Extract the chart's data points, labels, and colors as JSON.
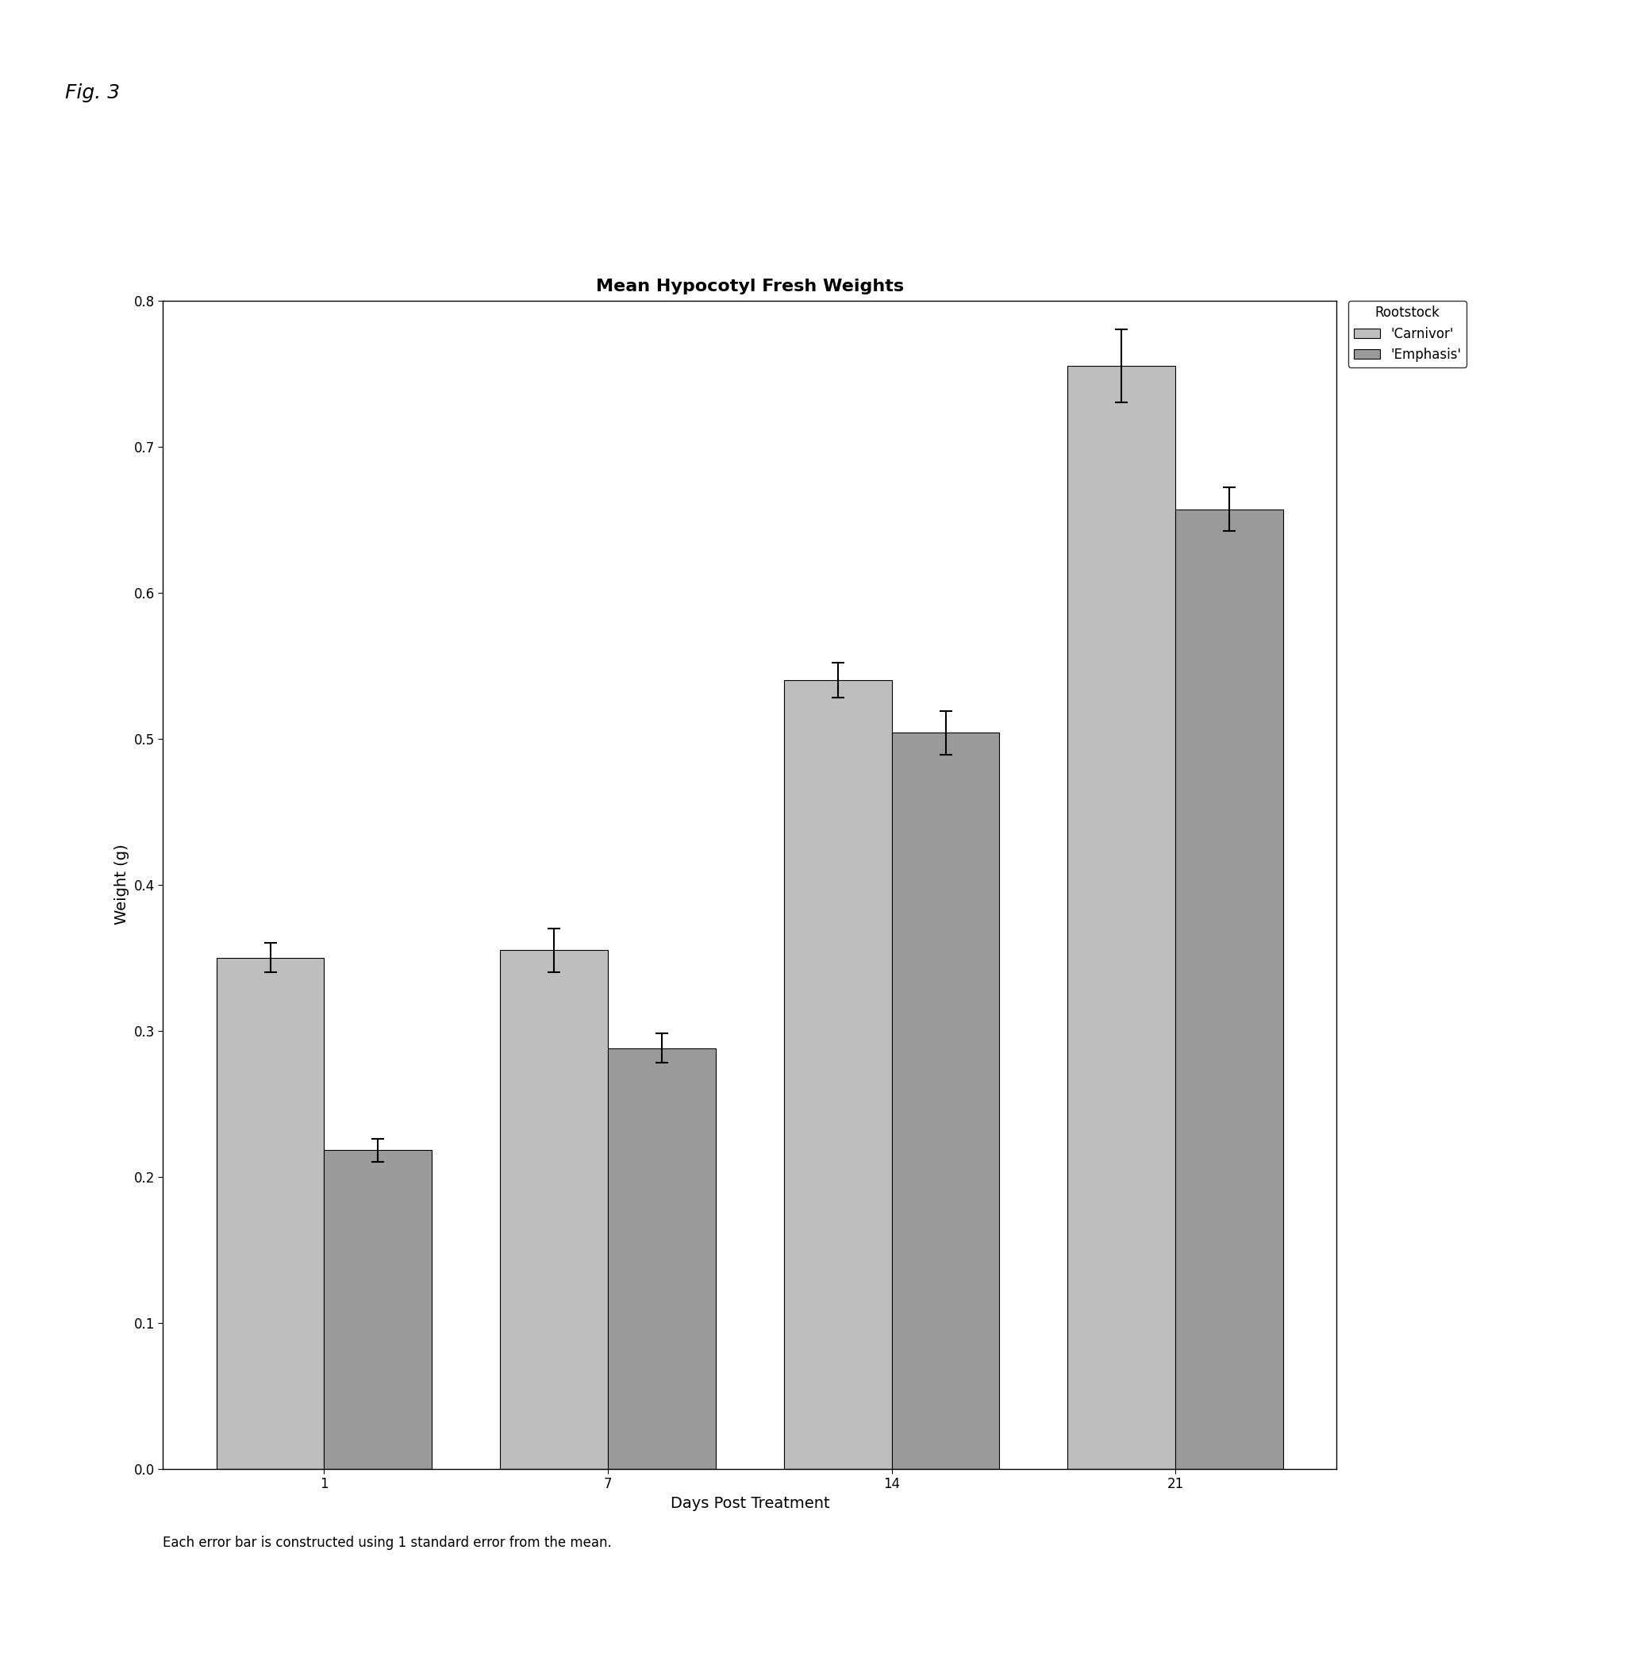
{
  "title": "Mean Hypocotyl Fresh Weights",
  "xlabel": "Days Post Treatment",
  "ylabel": "Weight (g)",
  "fig_label": "Fig. 3",
  "footnote": "Each error bar is constructed using 1 standard error from the mean.",
  "legend_title": "Rootstock",
  "legend_labels": [
    "'Carnivor'",
    "'Emphasis'"
  ],
  "days": [
    1,
    7,
    14,
    21
  ],
  "carnivor_means": [
    0.35,
    0.355,
    0.54,
    0.755
  ],
  "carnivor_errors": [
    0.01,
    0.015,
    0.012,
    0.025
  ],
  "emphasis_means": [
    0.218,
    0.288,
    0.504,
    0.657
  ],
  "emphasis_errors": [
    0.008,
    0.01,
    0.015,
    0.015
  ],
  "carnivor_color": "#bebebe",
  "emphasis_color": "#9a9a9a",
  "ylim": [
    0.0,
    0.8
  ],
  "yticks": [
    0.0,
    0.1,
    0.2,
    0.3,
    0.4,
    0.5,
    0.6,
    0.7,
    0.8
  ],
  "bar_width": 0.38,
  "title_fontsize": 16,
  "axis_label_fontsize": 14,
  "tick_fontsize": 12,
  "legend_fontsize": 12,
  "footnote_fontsize": 12,
  "fig_label_fontsize": 18
}
